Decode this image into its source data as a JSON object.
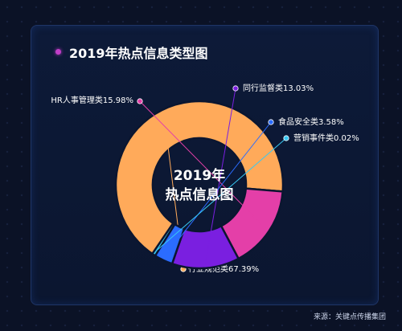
{
  "title": "2019年热点信息类型图",
  "source": "来源：关键点传播集团",
  "chart_data": {
    "type": "pie",
    "variant": "donut",
    "center_label_lines": [
      "2019年",
      "热点信息图"
    ],
    "slices": [
      {
        "name": "行业规范类",
        "value": 67.39,
        "label": "行业规范类67.39%",
        "color": "#ffaa5a"
      },
      {
        "name": "HR人事管理类",
        "value": 15.98,
        "label": "HR人事管理类15.98%",
        "color": "#e43fa8"
      },
      {
        "name": "同行监督类",
        "value": 13.03,
        "label": "同行监督类13.03%",
        "color": "#7a1fe0"
      },
      {
        "name": "食品安全类",
        "value": 3.58,
        "label": "食品安全类3.58%",
        "color": "#2b6cff"
      },
      {
        "name": "营销事件类",
        "value": 0.02,
        "label": "营销事件类0.02%",
        "color": "#38c7f2"
      }
    ]
  }
}
